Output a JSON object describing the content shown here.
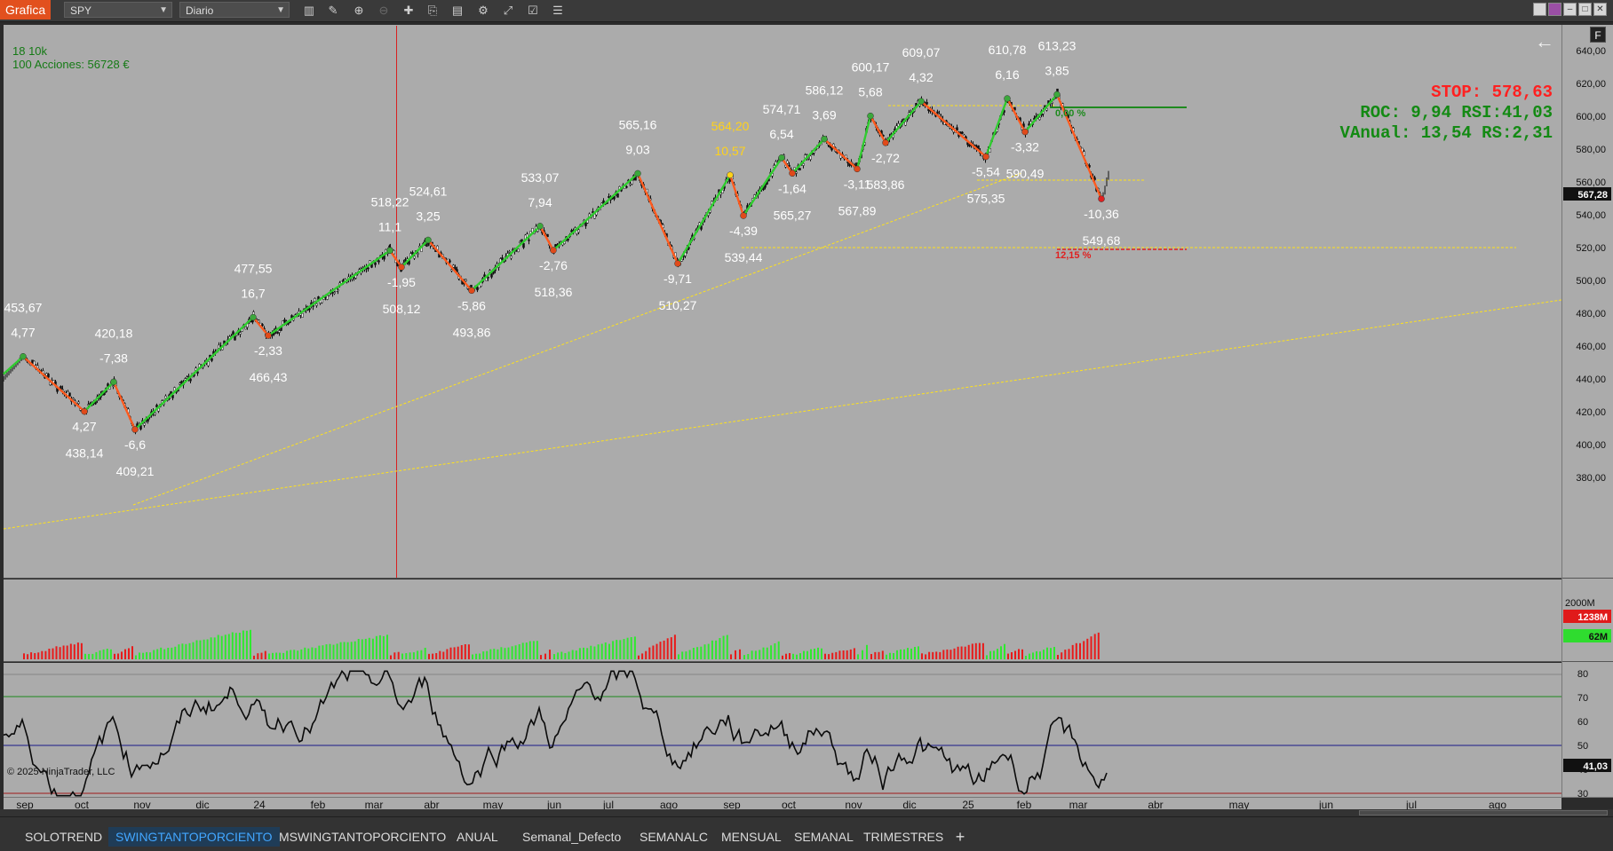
{
  "toolbar": {
    "title": "Grafica",
    "symbol": "SPY",
    "interval": "Diario",
    "tools": [
      "bar-style-icon",
      "draw-icon",
      "zoom-in-icon",
      "zoom-out-icon",
      "crosshair-icon",
      "data-box-icon",
      "templates-icon",
      "strategies-icon",
      "indicators-icon",
      "properties-icon",
      "list-icon"
    ]
  },
  "info": {
    "line1": "18 10k",
    "line2": "100 Acciones: 56728 €"
  },
  "stats": {
    "stop": "STOP: 578,63",
    "roc": "ROC: 9,94 RSI:41,03",
    "vanual": "VAnual: 13,54 RS:2,31"
  },
  "copyright": "© 2025 NinjaTrader, LLC",
  "price_axis": [
    "640,00",
    "620,00",
    "600,00",
    "580,00",
    "560,00",
    "540,00",
    "520,00",
    "500,00",
    "480,00",
    "460,00",
    "440,00",
    "420,00",
    "400,00",
    "380,00"
  ],
  "last_price": "567,28",
  "volume_axis": {
    "top": "2000M",
    "badge_red": "1238M",
    "badge_green": "62M"
  },
  "rsi_axis": [
    "80",
    "70",
    "60",
    "50",
    "40",
    "30"
  ],
  "rsi_badge": "41,03",
  "months": [
    "sep",
    "oct",
    "nov",
    "dic",
    "24",
    "feb",
    "mar",
    "abr",
    "may",
    "jun",
    "jul",
    "ago",
    "sep",
    "oct",
    "nov",
    "dic",
    "25",
    "feb",
    "mar",
    "abr",
    "may",
    "jun",
    "jul",
    "ago"
  ],
  "swing_labels": [
    {
      "price": "453,67",
      "pct": "4,77"
    },
    {
      "price": "438,14",
      "pct": "4,27"
    },
    {
      "price": "420,18",
      "pct": "-7,38"
    },
    {
      "price": "409,21",
      "pct": "-6,6"
    },
    {
      "price": "477,55",
      "pct": "16,7"
    },
    {
      "price": "466,43",
      "pct": "-2,33"
    },
    {
      "price": "518,22",
      "pct": "11,1"
    },
    {
      "price": "508,12",
      "pct": "-1,95"
    },
    {
      "price": "524,61",
      "pct": "3,25"
    },
    {
      "price": "493,86",
      "pct": "-5,86"
    },
    {
      "price": "533,07",
      "pct": "7,94"
    },
    {
      "price": "518,36",
      "pct": "-2,76"
    },
    {
      "price": "565,16",
      "pct": "9,03"
    },
    {
      "price": "510,27",
      "pct": "-9,71"
    },
    {
      "price": "564,20",
      "pct": "10,57"
    },
    {
      "price": "539,44",
      "pct": "-4,39"
    },
    {
      "price": "574,71",
      "pct": "6,54"
    },
    {
      "price": "565,27",
      "pct": "-1,64"
    },
    {
      "price": "586,12",
      "pct": "3,69"
    },
    {
      "price": "567,89",
      "pct": "-3,11"
    },
    {
      "price": "600,17",
      "pct": "5,68"
    },
    {
      "price": "583,86",
      "pct": "-2,72"
    },
    {
      "price": "609,07",
      "pct": "4,32"
    },
    {
      "price": "575,35",
      "pct": "-5,54"
    },
    {
      "price": "610,78",
      "pct": "6,16"
    },
    {
      "price": "590,49",
      "pct": "-3,32"
    },
    {
      "price": "613,23",
      "pct": "3,85"
    },
    {
      "price": "549,68",
      "pct": "-10,36"
    }
  ],
  "trade_marks": {
    "pct_up": "0,00 %",
    "pct_down": "12,15 %"
  },
  "colors": {
    "up": "#2fcc2f",
    "down": "#ff5a1e",
    "highlight": "#ffd21a",
    "stop": "#ff2020",
    "roc": "#138a13",
    "bg": "#ababab"
  },
  "chart_data": {
    "type": "line",
    "xlabel": "",
    "ylabel": "",
    "ylim": [
      370,
      645
    ],
    "swing_points": [
      [
        453.67,
        "H"
      ],
      [
        420.18,
        "L"
      ],
      [
        438.14,
        "H"
      ],
      [
        409.21,
        "L"
      ],
      [
        477.55,
        "H"
      ],
      [
        466.43,
        "L"
      ],
      [
        518.22,
        "H"
      ],
      [
        508.12,
        "L"
      ],
      [
        524.61,
        "H"
      ],
      [
        493.86,
        "L"
      ],
      [
        533.07,
        "H"
      ],
      [
        518.36,
        "L"
      ],
      [
        565.16,
        "H"
      ],
      [
        510.27,
        "L"
      ],
      [
        564.2,
        "H"
      ],
      [
        539.44,
        "L"
      ],
      [
        574.71,
        "H"
      ],
      [
        565.27,
        "L"
      ],
      [
        586.12,
        "H"
      ],
      [
        567.89,
        "L"
      ],
      [
        600.17,
        "H"
      ],
      [
        583.86,
        "L"
      ],
      [
        609.07,
        "H"
      ],
      [
        575.35,
        "L"
      ],
      [
        610.78,
        "H"
      ],
      [
        590.49,
        "L"
      ],
      [
        613.23,
        "H"
      ],
      [
        549.68,
        "L"
      ]
    ],
    "rsi_levels": [
      30,
      50,
      70
    ]
  },
  "tabs": [
    "SOLOTREND",
    "SWINGTANTOPORCIENTO",
    "MSWINGTANTOPORCIENTO",
    "ANUAL",
    "Semanal_Defecto",
    "SEMANALC",
    "MENSUAL",
    "SEMANAL",
    "TRIMESTRES"
  ],
  "active_tab": "SWINGTANTOPORCIENTO"
}
